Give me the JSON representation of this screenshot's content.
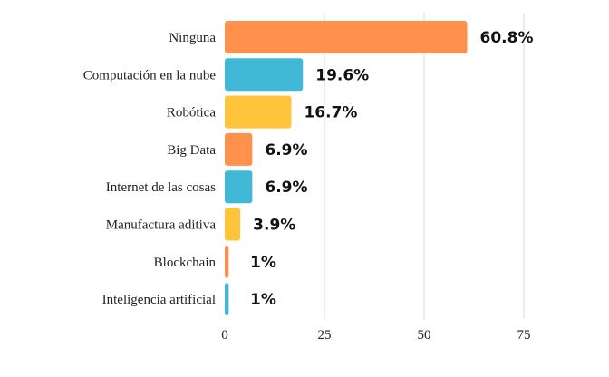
{
  "chart_data": {
    "type": "bar",
    "orientation": "horizontal",
    "categories": [
      "Ninguna",
      "Computación en la nube",
      "Robótica",
      "Big Data",
      "Internet de las cosas",
      "Manufactura aditiva",
      "Blockchain",
      "Inteligencia artificial"
    ],
    "values": [
      60.8,
      19.6,
      16.7,
      6.9,
      6.9,
      3.9,
      1,
      1
    ],
    "value_labels": [
      "60.8%",
      "19.6%",
      "16.7%",
      "6.9%",
      "6.9%",
      "3.9%",
      "1%",
      "1%"
    ],
    "bar_colors": [
      "#FF914D",
      "#41B8D5",
      "#FFC33C",
      "#FF914D",
      "#41B8D5",
      "#FFC33C",
      "#FF914D",
      "#41B8D5"
    ],
    "xlim": [
      0,
      80
    ],
    "xticks": [
      0,
      25,
      50,
      75
    ],
    "xtick_labels": [
      "0",
      "25",
      "50",
      "75"
    ],
    "grid": true,
    "title": "",
    "xlabel": "",
    "ylabel": ""
  }
}
